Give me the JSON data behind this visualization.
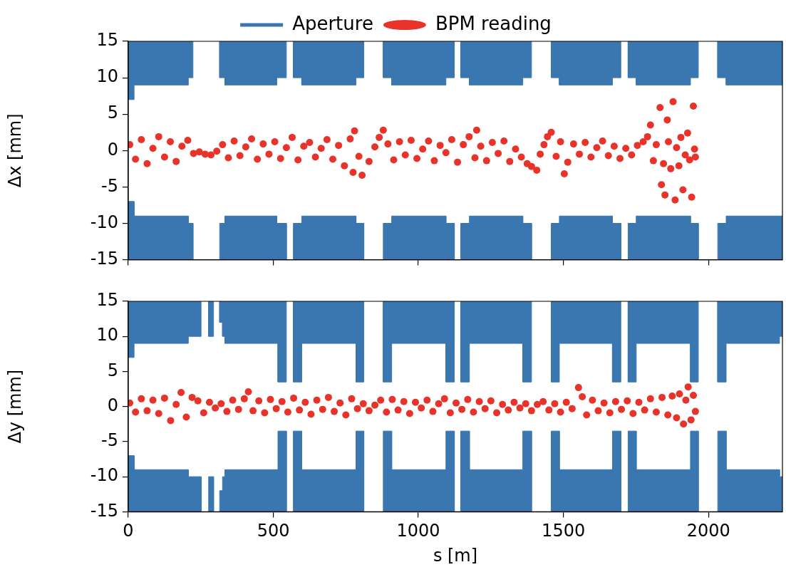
{
  "chart_data": [
    {
      "type": "scatter",
      "ylabel": "Δx [mm]",
      "legend": "top",
      "tick_labels": "y",
      "grid": false,
      "xlim": [
        0,
        2255
      ],
      "xticks": [
        0,
        500,
        1000,
        1500,
        2000
      ],
      "ylim": [
        -15,
        15
      ],
      "yticks": [
        -15,
        -10,
        -5,
        0,
        5,
        10,
        15
      ],
      "series": [
        {
          "name": "Aperture",
          "type": "area",
          "color": "#3a76af",
          "marker": "none",
          "line_style": "solid",
          "x": [
            0,
            0,
            20,
            20,
            207,
            207,
            223,
            223,
            270,
            315,
            315,
            333,
            333,
            512,
            512,
            545,
            545,
            557,
            569,
            569,
            598,
            598,
            785,
            785,
            812,
            812,
            845,
            879,
            879,
            908,
            908,
            1095,
            1095,
            1124,
            1124,
            1135,
            1146,
            1146,
            1176,
            1176,
            1360,
            1360,
            1390,
            1390,
            1424,
            1458,
            1458,
            1486,
            1486,
            1669,
            1669,
            1698,
            1698,
            1710,
            1723,
            1723,
            1751,
            1751,
            1938,
            1938,
            1965,
            1965,
            2000,
            2032,
            2032,
            2061,
            2061,
            2255,
            2255
          ],
          "values": [
            15,
            7,
            7,
            9,
            9,
            10,
            10,
            15,
            null,
            15,
            10,
            10,
            9,
            9,
            10,
            10,
            15,
            null,
            15,
            10,
            10,
            9,
            9,
            10,
            10,
            15,
            null,
            15,
            10,
            10,
            9,
            9,
            10,
            10,
            15,
            null,
            15,
            10,
            10,
            9,
            9,
            10,
            10,
            15,
            null,
            15,
            10,
            10,
            9,
            9,
            10,
            10,
            15,
            null,
            15,
            10,
            10,
            9,
            9,
            10,
            10,
            15,
            null,
            15,
            10,
            10,
            9,
            9,
            15
          ]
        },
        {
          "type": "area",
          "color": "#3a76af",
          "marker": "none",
          "line_style": "solid",
          "x": [
            0,
            0,
            20,
            20,
            207,
            207,
            223,
            223,
            270,
            315,
            315,
            333,
            333,
            512,
            512,
            545,
            545,
            557,
            569,
            569,
            598,
            598,
            785,
            785,
            812,
            812,
            845,
            879,
            879,
            908,
            908,
            1095,
            1095,
            1124,
            1124,
            1135,
            1146,
            1146,
            1176,
            1176,
            1360,
            1360,
            1390,
            1390,
            1424,
            1458,
            1458,
            1486,
            1486,
            1669,
            1669,
            1698,
            1698,
            1710,
            1723,
            1723,
            1751,
            1751,
            1938,
            1938,
            1965,
            1965,
            2000,
            2032,
            2032,
            2061,
            2061,
            2255,
            2255
          ],
          "values": [
            -15,
            -7,
            -7,
            -9,
            -9,
            -10,
            -10,
            -15,
            null,
            -15,
            -10,
            -10,
            -9,
            -9,
            -10,
            -10,
            -15,
            null,
            -15,
            -10,
            -10,
            -9,
            -9,
            -10,
            -10,
            -15,
            null,
            -15,
            -10,
            -10,
            -9,
            -9,
            -10,
            -10,
            -15,
            null,
            -15,
            -10,
            -10,
            -9,
            -9,
            -10,
            -10,
            -15,
            null,
            -15,
            -10,
            -10,
            -9,
            -9,
            -10,
            -10,
            -15,
            null,
            -15,
            -10,
            -10,
            -9,
            -9,
            -10,
            -10,
            -15,
            null,
            -15,
            -10,
            -10,
            -9,
            -9,
            -15
          ]
        },
        {
          "name": "BPM reading",
          "color": "#e8332a",
          "marker": "circle",
          "x": [
            5,
            25,
            45,
            65,
            85,
            105,
            125,
            145,
            165,
            185,
            205,
            225,
            245,
            265,
            285,
            305,
            325,
            345,
            365,
            385,
            405,
            425,
            445,
            465,
            485,
            505,
            525,
            545,
            565,
            585,
            605,
            625,
            645,
            665,
            685,
            705,
            725,
            745,
            765,
            775,
            780,
            795,
            806,
            830,
            850,
            865,
            879,
            895,
            915,
            935,
            955,
            975,
            995,
            1015,
            1035,
            1055,
            1075,
            1095,
            1115,
            1135,
            1155,
            1175,
            1195,
            1201,
            1215,
            1235,
            1255,
            1275,
            1295,
            1315,
            1335,
            1355,
            1375,
            1390,
            1408,
            1420,
            1433,
            1445,
            1458,
            1475,
            1490,
            1503,
            1515,
            1535,
            1555,
            1575,
            1595,
            1615,
            1635,
            1655,
            1675,
            1695,
            1715,
            1735,
            1755,
            1775,
            1790,
            1800,
            1810,
            1820,
            1833,
            1838,
            1845,
            1850,
            1858,
            1862,
            1870,
            1878,
            1885,
            1890,
            1898,
            1905,
            1912,
            1920,
            1928,
            1935,
            1942,
            1948,
            1952,
            1955
          ],
          "values": [
            0.8,
            -1.2,
            1.5,
            -1.8,
            0.3,
            1.9,
            -0.9,
            1.2,
            -1.5,
            0.6,
            1.4,
            -0.4,
            -0.2,
            -0.5,
            -0.6,
            -0.1,
            0.8,
            -1.0,
            1.3,
            -0.7,
            0.5,
            1.6,
            -1.2,
            0.9,
            -0.5,
            1.2,
            -1.1,
            0.4,
            1.8,
            -1.3,
            0.6,
            1.1,
            -0.9,
            0.3,
            1.5,
            -1.2,
            0.7,
            -2.1,
            1.6,
            -3.0,
            2.7,
            -0.8,
            -3.4,
            -1.5,
            0.5,
            1.8,
            2.8,
            0.9,
            -1.3,
            1.2,
            -0.6,
            1.4,
            -1.1,
            0.2,
            1.3,
            -1.4,
            0.7,
            -0.3,
            1.5,
            -1.6,
            0.8,
            1.9,
            -1.0,
            2.8,
            0.6,
            -1.4,
            1.1,
            -0.4,
            1.3,
            -1.5,
            0.2,
            -0.9,
            -1.8,
            -2.2,
            -2.7,
            -0.5,
            0.8,
            1.9,
            2.5,
            -0.8,
            1.2,
            -3.2,
            -1.6,
            0.9,
            -0.5,
            1.1,
            -0.9,
            0.4,
            1.3,
            -0.7,
            0.6,
            -1.1,
            0.3,
            -0.6,
            0.7,
            1.2,
            1.9,
            3.5,
            -1.4,
            0.8,
            5.9,
            -4.7,
            -1.8,
            -6.1,
            4.2,
            1.2,
            -2.5,
            6.7,
            -6.8,
            0.4,
            -2.1,
            1.8,
            -5.4,
            -0.6,
            2.4,
            -1.3,
            -6.4,
            6.1,
            0.2,
            -0.9
          ]
        }
      ]
    },
    {
      "type": "scatter",
      "xlabel": "s [m]",
      "ylabel": "Δy [mm]",
      "grid": false,
      "xlim": [
        0,
        2255
      ],
      "xticks": [
        0,
        500,
        1000,
        1500,
        2000
      ],
      "ylim": [
        -15,
        15
      ],
      "yticks": [
        -15,
        -10,
        -5,
        0,
        5,
        10,
        15
      ],
      "series": [
        {
          "type": "area",
          "color": "#3a76af",
          "marker": "none",
          "line_style": "solid",
          "x": [
            0,
            0,
            20,
            20,
            207,
            207,
            251,
            251,
            260,
            277,
            277,
            294,
            294,
            304,
            315,
            315,
            325,
            325,
            333,
            333,
            516,
            516,
            545,
            545,
            557,
            569,
            569,
            598,
            598,
            785,
            785,
            812,
            812,
            845,
            879,
            879,
            908,
            908,
            1095,
            1095,
            1124,
            1124,
            1135,
            1146,
            1146,
            1176,
            1176,
            1360,
            1360,
            1390,
            1390,
            1424,
            1458,
            1458,
            1486,
            1486,
            1669,
            1669,
            1698,
            1698,
            1710,
            1723,
            1723,
            1751,
            1751,
            1938,
            1938,
            1965,
            1965,
            2000,
            2032,
            2032,
            2061,
            2061,
            2245,
            2245,
            2255,
            2255
          ],
          "values": [
            15,
            7,
            7,
            9,
            9,
            10,
            10,
            15,
            null,
            15,
            10,
            10,
            15,
            null,
            15,
            12,
            12,
            10,
            10,
            9,
            9,
            3.5,
            3.5,
            15,
            null,
            15,
            3.5,
            3.5,
            9,
            9,
            3.5,
            3.5,
            15,
            null,
            15,
            3.5,
            3.5,
            9,
            9,
            3.5,
            3.5,
            15,
            null,
            15,
            3.5,
            3.5,
            9,
            9,
            3.5,
            3.5,
            15,
            null,
            15,
            3.5,
            3.5,
            9,
            9,
            3.5,
            3.5,
            15,
            null,
            15,
            3.5,
            3.5,
            9,
            9,
            3.5,
            3.5,
            15,
            null,
            15,
            3.5,
            3.5,
            9,
            9,
            10,
            10,
            15
          ]
        },
        {
          "type": "area",
          "color": "#3a76af",
          "marker": "none",
          "line_style": "solid",
          "x": [
            0,
            0,
            20,
            20,
            207,
            207,
            251,
            251,
            260,
            277,
            277,
            294,
            294,
            304,
            315,
            315,
            325,
            325,
            333,
            333,
            516,
            516,
            545,
            545,
            557,
            569,
            569,
            598,
            598,
            785,
            785,
            812,
            812,
            845,
            879,
            879,
            908,
            908,
            1095,
            1095,
            1124,
            1124,
            1135,
            1146,
            1146,
            1176,
            1176,
            1360,
            1360,
            1390,
            1390,
            1424,
            1458,
            1458,
            1486,
            1486,
            1669,
            1669,
            1698,
            1698,
            1710,
            1723,
            1723,
            1751,
            1751,
            1938,
            1938,
            1965,
            1965,
            2000,
            2032,
            2032,
            2061,
            2061,
            2245,
            2245,
            2255,
            2255
          ],
          "values": [
            -15,
            -7,
            -7,
            -9,
            -9,
            -10,
            -10,
            -15,
            null,
            -15,
            -10,
            -10,
            -15,
            null,
            -15,
            -12,
            -12,
            -10,
            -10,
            -9,
            -9,
            -3.5,
            -3.5,
            -15,
            null,
            -15,
            -3.5,
            -3.5,
            -9,
            -9,
            -3.5,
            -3.5,
            -15,
            null,
            -15,
            -3.5,
            -3.5,
            -9,
            -9,
            -3.5,
            -3.5,
            -15,
            null,
            -15,
            -3.5,
            -3.5,
            -9,
            -9,
            -3.5,
            -3.5,
            -15,
            null,
            -15,
            -3.5,
            -3.5,
            -9,
            -9,
            -3.5,
            -3.5,
            -15,
            null,
            -15,
            -3.5,
            -3.5,
            -9,
            -9,
            -3.5,
            -3.5,
            -15,
            null,
            -15,
            -3.5,
            -3.5,
            -9,
            -9,
            -10,
            -10,
            -15
          ]
        },
        {
          "color": "#e8332a",
          "marker": "circle",
          "x": [
            5,
            25,
            45,
            65,
            85,
            105,
            125,
            146,
            165,
            182,
            200,
            220,
            240,
            260,
            280,
            300,
            320,
            340,
            360,
            380,
            400,
            414,
            430,
            450,
            470,
            490,
            510,
            530,
            550,
            570,
            590,
            610,
            630,
            650,
            670,
            690,
            710,
            730,
            750,
            770,
            790,
            810,
            830,
            850,
            870,
            890,
            910,
            930,
            950,
            970,
            990,
            1010,
            1030,
            1050,
            1070,
            1090,
            1110,
            1130,
            1150,
            1170,
            1190,
            1210,
            1230,
            1250,
            1270,
            1290,
            1310,
            1330,
            1350,
            1370,
            1390,
            1410,
            1430,
            1450,
            1470,
            1490,
            1510,
            1530,
            1552,
            1565,
            1580,
            1600,
            1620,
            1640,
            1660,
            1680,
            1700,
            1720,
            1740,
            1760,
            1780,
            1800,
            1820,
            1840,
            1860,
            1875,
            1890,
            1900,
            1914,
            1922,
            1930,
            1940,
            1948,
            1955
          ],
          "values": [
            0.5,
            -0.8,
            1.1,
            -0.6,
            0.9,
            -1.0,
            1.2,
            -2.0,
            0.3,
            2.0,
            -1.5,
            1.3,
            0.8,
            -0.9,
            0.6,
            -0.2,
            0.4,
            -0.7,
            0.9,
            -0.4,
            1.1,
            2.1,
            -0.6,
            0.8,
            -0.9,
            1.0,
            -0.3,
            0.7,
            -0.8,
            1.2,
            -0.5,
            0.6,
            -1.1,
            0.9,
            -0.4,
            1.3,
            -0.7,
            0.5,
            -1.2,
            1.1,
            -0.3,
            0.4,
            -0.6,
            0.2,
            0.9,
            -0.8,
            1.0,
            -0.5,
            0.7,
            -1.0,
            0.6,
            -0.2,
            0.9,
            -0.7,
            0.4,
            1.1,
            -0.9,
            0.5,
            -0.4,
            1.0,
            -0.8,
            0.7,
            -0.3,
            0.8,
            -0.9,
            0.3,
            -0.5,
            0.6,
            -0.2,
            0.4,
            -0.6,
            0.3,
            0.7,
            -0.5,
            0.4,
            -0.8,
            0.6,
            -0.3,
            2.7,
            1.4,
            -1.2,
            0.9,
            -0.6,
            0.5,
            -0.9,
            0.7,
            -0.4,
            0.8,
            -1.0,
            0.6,
            -0.5,
            1.1,
            -0.8,
            1.3,
            -1.2,
            1.5,
            -1.6,
            1.8,
            -2.5,
            0.9,
            2.8,
            -1.9,
            1.6,
            -0.7
          ]
        }
      ]
    }
  ]
}
